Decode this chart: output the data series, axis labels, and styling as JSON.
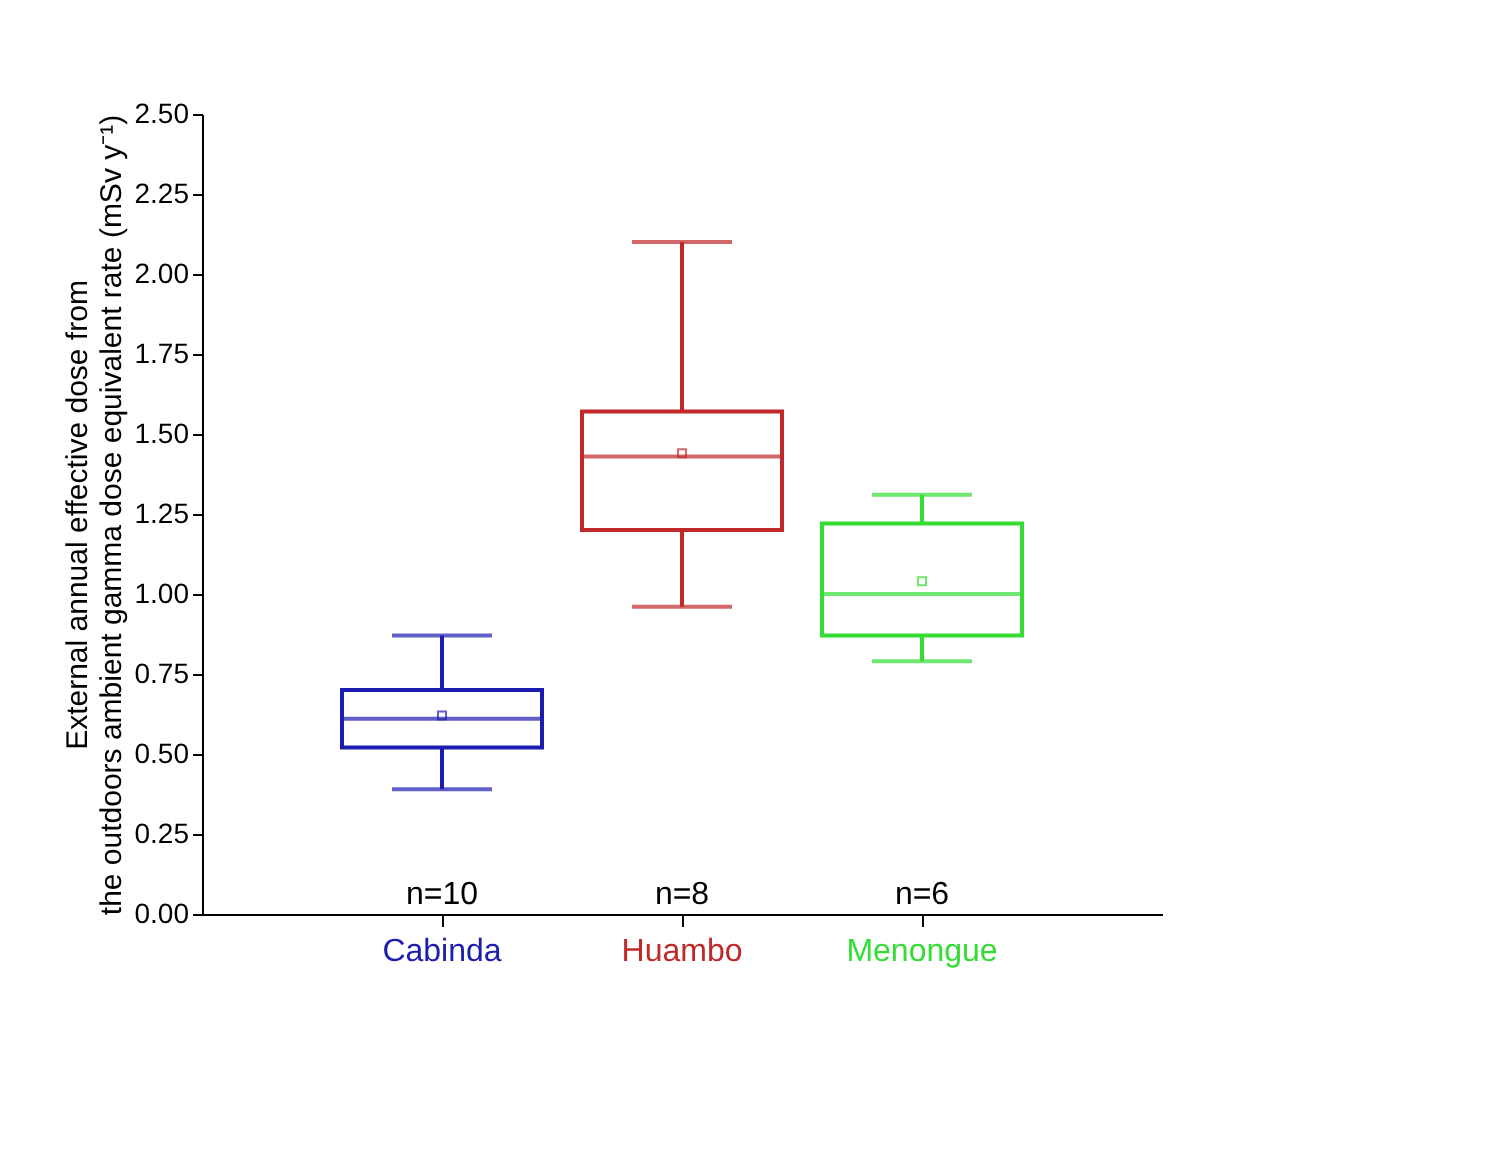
{
  "chart_data": {
    "type": "box",
    "ylabel": [
      "External annual effective dose from",
      "the outdoors ambient gamma dose equivalent rate (mSv y⁻¹)"
    ],
    "categories": [
      "Cabinda",
      "Huambo",
      "Menongue"
    ],
    "colors": [
      "#1c1cb0",
      "#c0282a",
      "#33dd33"
    ],
    "boxes": [
      {
        "low": 0.39,
        "q1": 0.52,
        "median": 0.61,
        "q3": 0.7,
        "high": 0.87,
        "mean": 0.62
      },
      {
        "low": 0.96,
        "q1": 1.2,
        "median": 1.43,
        "q3": 1.57,
        "high": 2.1,
        "mean": 1.44
      },
      {
        "low": 0.79,
        "q1": 0.87,
        "median": 1.0,
        "q3": 1.22,
        "high": 1.31,
        "mean": 1.04
      }
    ],
    "ylim": [
      0,
      2.5
    ],
    "yticks": [
      {
        "value": 0,
        "label": "0.00"
      },
      {
        "value": 0.25,
        "label": "0.25"
      },
      {
        "value": 0.5,
        "label": "0.50"
      },
      {
        "value": 0.75,
        "label": "0.75"
      },
      {
        "value": 1,
        "label": "1.00"
      },
      {
        "value": 1.25,
        "label": "1.25"
      },
      {
        "value": 1.5,
        "label": "1.50"
      },
      {
        "value": 1.75,
        "label": "1.75"
      },
      {
        "value": 2,
        "label": "2.00"
      },
      {
        "value": 2.25,
        "label": "2.25"
      },
      {
        "value": 2.5,
        "label": "2.50"
      }
    ],
    "annotations": [
      "n=10",
      "n=8",
      "n=6"
    ],
    "grid": false
  }
}
